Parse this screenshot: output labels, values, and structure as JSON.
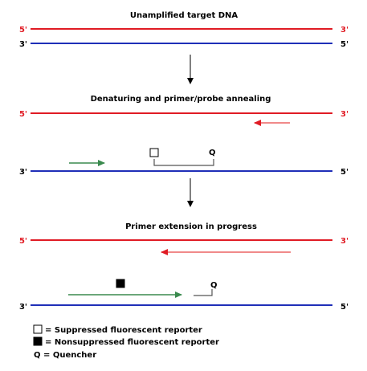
{
  "colors": {
    "red_strand": "#e01b24",
    "blue_strand": "#1f2fb8",
    "green_primer": "#3a8a4e",
    "pink_primer": "#f08a8a",
    "probe_line": "#555555",
    "text": "#000000"
  },
  "stages": [
    {
      "title": "Unamplified target DNA"
    },
    {
      "title": "Denaturing and primer/probe annealing"
    },
    {
      "title": "Primer extension in progress"
    }
  ],
  "strand_labels": {
    "five_prime": "5'",
    "three_prime": "3'"
  },
  "probe": {
    "quencher_label": "Q"
  },
  "legend": [
    {
      "icon": "open-square-icon",
      "text": "= Suppressed fluorescent reporter"
    },
    {
      "icon": "filled-square-icon",
      "text": "= Nonsuppressed fluorescent reporter"
    },
    {
      "icon": "",
      "text": "Q = Quencher"
    }
  ]
}
